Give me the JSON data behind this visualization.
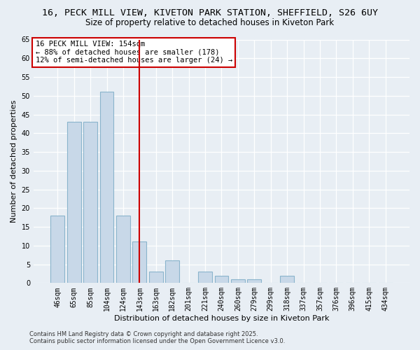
{
  "title": "16, PECK MILL VIEW, KIVETON PARK STATION, SHEFFIELD, S26 6UY",
  "subtitle": "Size of property relative to detached houses in Kiveton Park",
  "xlabel": "Distribution of detached houses by size in Kiveton Park",
  "ylabel": "Number of detached properties",
  "categories": [
    "46sqm",
    "65sqm",
    "85sqm",
    "104sqm",
    "124sqm",
    "143sqm",
    "163sqm",
    "182sqm",
    "201sqm",
    "221sqm",
    "240sqm",
    "260sqm",
    "279sqm",
    "299sqm",
    "318sqm",
    "337sqm",
    "357sqm",
    "376sqm",
    "396sqm",
    "415sqm",
    "434sqm"
  ],
  "values": [
    18,
    43,
    43,
    51,
    18,
    11,
    3,
    6,
    0,
    3,
    2,
    1,
    1,
    0,
    2,
    0,
    0,
    0,
    0,
    0,
    0
  ],
  "bar_color": "#c8d8e8",
  "bar_edge_color": "#8ab4cc",
  "bg_color": "#e8eef4",
  "grid_color": "#ffffff",
  "vline_x": 5,
  "vline_color": "#cc0000",
  "annotation_title": "16 PECK MILL VIEW: 154sqm",
  "annotation_line1": "← 88% of detached houses are smaller (178)",
  "annotation_line2": "12% of semi-detached houses are larger (24) →",
  "annotation_box_color": "white",
  "annotation_box_edge": "#cc0000",
  "ylim": [
    0,
    65
  ],
  "yticks": [
    0,
    5,
    10,
    15,
    20,
    25,
    30,
    35,
    40,
    45,
    50,
    55,
    60,
    65
  ],
  "footer1": "Contains HM Land Registry data © Crown copyright and database right 2025.",
  "footer2": "Contains public sector information licensed under the Open Government Licence v3.0.",
  "title_fontsize": 9.5,
  "subtitle_fontsize": 8.5,
  "tick_fontsize": 7,
  "label_fontsize": 8,
  "footer_fontsize": 6,
  "ann_fontsize": 7.5
}
